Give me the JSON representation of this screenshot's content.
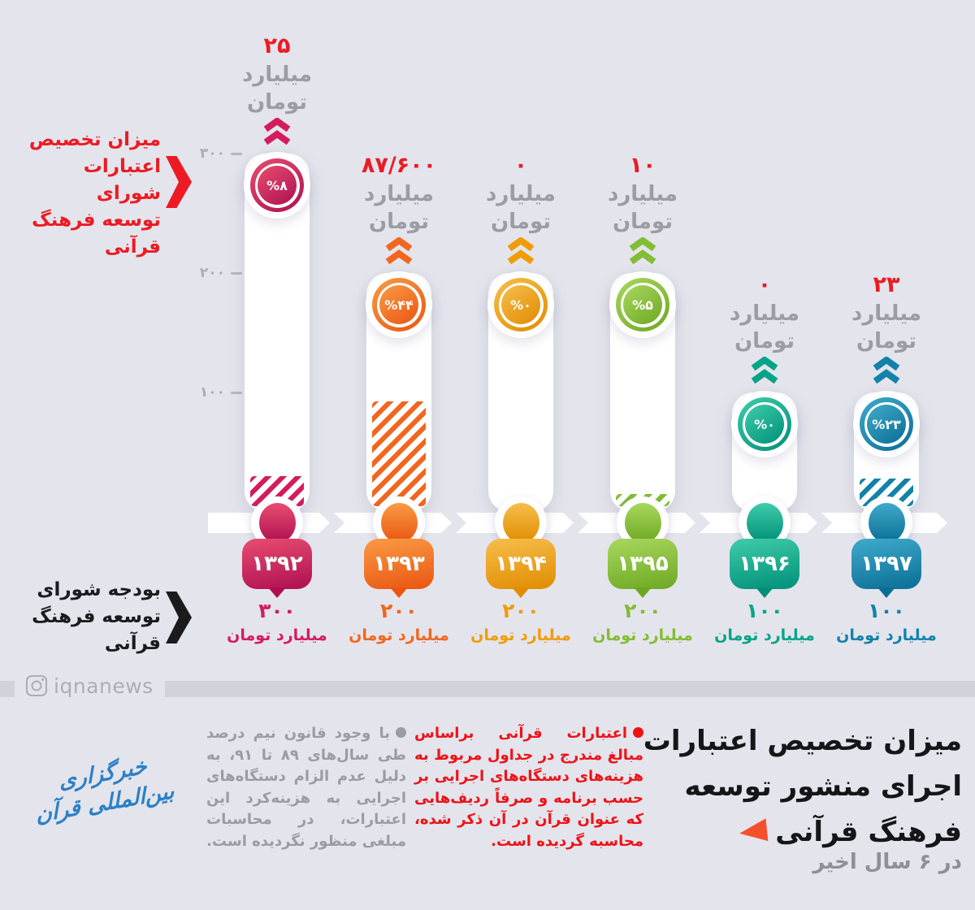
{
  "page": {
    "background": "#E4E4EC",
    "divider_color": "#D2D2DA",
    "accent_red": "#EC1B23"
  },
  "side_labels": {
    "allocation": {
      "lines": [
        "میزان تخصیص",
        "اعتبارات شورای",
        "توسعه فرهنگ",
        "قرآنی"
      ],
      "color": "#EC1B23"
    },
    "budget": {
      "lines": [
        "بودجه شورای",
        "توسعه فرهنگ",
        "قرآنی"
      ],
      "color": "#1B1B1E"
    }
  },
  "watermark": {
    "handle": "iqnanews",
    "icon": "instagram-icon"
  },
  "chart_data": {
    "type": "bar",
    "title": "میزان تخصیص اعتبارات اجرای منشور توسعه فرهنگ قرآنی",
    "subtitle": "در ۶ سال اخیر",
    "ylabel": "میلیارد تومان",
    "ylim": [
      0,
      320
    ],
    "axis_ticks": [
      {
        "label": "۳۰۰",
        "value": 300
      },
      {
        "label": "۲۰۰",
        "value": 200
      },
      {
        "label": "۱۰۰",
        "value": 100
      }
    ],
    "unit_word1": "میلیارد",
    "unit_word2": "تومان",
    "unit_full": "میلیارد تومان",
    "series_notes": {
      "bar_total": "بودجه شورای توسعه فرهنگ قرآنی",
      "hatched_part": "میزان تخصیص اعتبارات شورای توسعه فرهنگ قرآنی"
    },
    "bars": [
      {
        "year": 1392,
        "year_label": "۱۳۹۲",
        "budget_value": 300,
        "budget_label": "۳۰۰",
        "allocation_value": 25,
        "allocation_label": "۲۵",
        "pct_label": "%۸",
        "color": "#D41C5C",
        "color_light": "#E84D6F",
        "color_dark": "#AE0F52"
      },
      {
        "year": 1393,
        "year_label": "۱۳۹۳",
        "budget_value": 200,
        "budget_label": "۲۰۰",
        "allocation_value": 87.6,
        "allocation_label": "۸۷/۶۰۰",
        "pct_label": "%۴۴",
        "color": "#F2661E",
        "color_light": "#F99B45",
        "color_dark": "#EA5511"
      },
      {
        "year": 1394,
        "year_label": "۱۳۹۴",
        "budget_value": 200,
        "budget_label": "۲۰۰",
        "allocation_value": 0,
        "allocation_label": "۰",
        "pct_label": "%۰",
        "color": "#EF9C07",
        "color_light": "#F6BE4B",
        "color_dark": "#E18C00"
      },
      {
        "year": 1395,
        "year_label": "۱۳۹۵",
        "budget_value": 200,
        "budget_label": "۲۰۰",
        "allocation_value": 10,
        "allocation_label": "۱۰",
        "pct_label": "%۵",
        "color": "#82BD33",
        "color_light": "#A8D75E",
        "color_dark": "#6EA823"
      },
      {
        "year": 1396,
        "year_label": "۱۳۹۶",
        "budget_value": 100,
        "budget_label": "۱۰۰",
        "allocation_value": 0,
        "allocation_label": "۰",
        "pct_label": "%۰",
        "color": "#05A489",
        "color_light": "#3FCCAA",
        "color_dark": "#008F79"
      },
      {
        "year": 1397,
        "year_label": "۱۳۹۷",
        "budget_value": 100,
        "budget_label": "۱۰۰",
        "allocation_value": 23,
        "allocation_label": "۲۳",
        "pct_label": "%۲۳",
        "color": "#1282AA",
        "color_light": "#3FAACB",
        "color_dark": "#0B6E95"
      }
    ]
  },
  "footer": {
    "title_lines": [
      "میزان تخصیص اعتبارات",
      "اجرای منشور توسعه",
      "فرهنگ قرآنی"
    ],
    "title_arrow_color": "#F4502C",
    "subtitle": "در ۶ سال اخیر",
    "note_red": "اعتبارات قرآنی براساس مبالغ مندرج در جداول مربوط به هزینه‌های دستگاه‌های اجرایی بر حسب برنامه و صرفاً ردیف‌هایی که عنوان قرآن در آن ذکر شده، محاسبه گردیده است.",
    "note_gray": "با وجود قانون نیم درصد طی سال‌های ۸۹ تا ۹۱، به دلیل عدم الزام دستگاه‌های اجرایی به هزینه‌کرد این اعتبارات، در محاسبات مبلغی منظور نگردیده است.",
    "logo_text": "خبرگزاری بین‌المللی قرآن"
  }
}
